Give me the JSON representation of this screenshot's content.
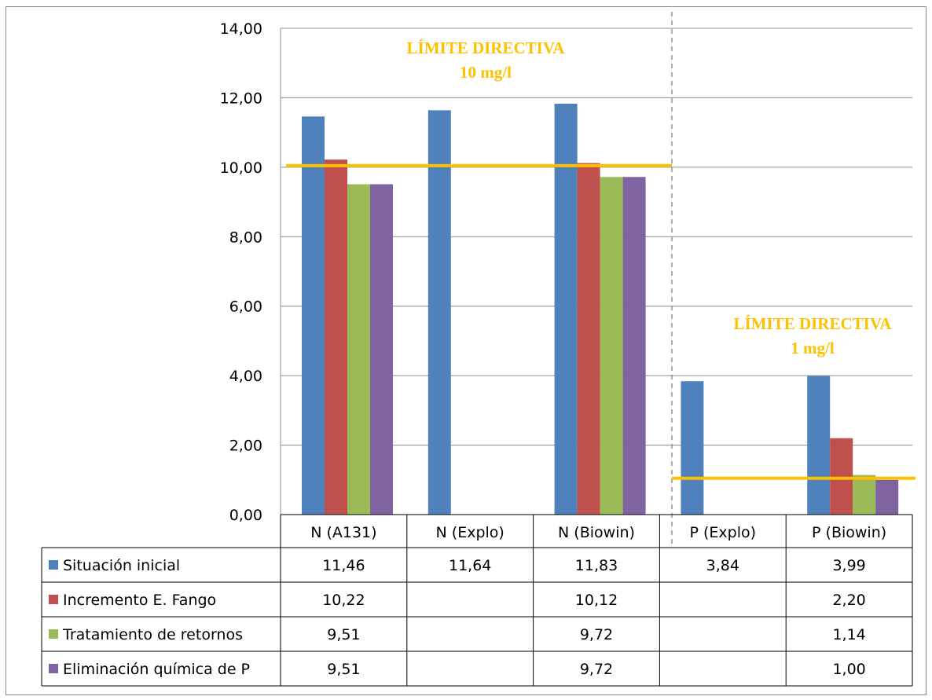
{
  "chart_data": {
    "type": "bar",
    "categories": [
      "N (A131)",
      "N (Explo)",
      "N (Biowin)",
      "P (Explo)",
      "P (Biowin)"
    ],
    "series": [
      {
        "name": "Situación inicial",
        "color": "#4F81BD",
        "values": [
          11.46,
          11.64,
          11.83,
          3.84,
          3.99
        ],
        "labels": [
          "11,46",
          "11,64",
          "11,83",
          "3,84",
          "3,99"
        ]
      },
      {
        "name": "Incremento E. Fango",
        "color": "#C0504D",
        "values": [
          10.22,
          null,
          10.12,
          null,
          2.2
        ],
        "labels": [
          "10,22",
          "",
          "10,12",
          "",
          "2,20"
        ]
      },
      {
        "name": "Tratamiento de retornos",
        "color": "#9BBB59",
        "values": [
          9.51,
          null,
          9.72,
          null,
          1.14
        ],
        "labels": [
          "9,51",
          "",
          "9,72",
          "",
          "1,14"
        ]
      },
      {
        "name": "Eliminación química de P",
        "color": "#8064A2",
        "values": [
          9.51,
          null,
          9.72,
          null,
          1.0
        ],
        "labels": [
          "9,51",
          "",
          "9,72",
          "",
          "1,00"
        ]
      }
    ],
    "ylim": [
      0,
      14
    ],
    "yticks": [
      0,
      2,
      4,
      6,
      8,
      10,
      12,
      14
    ],
    "ytick_labels": [
      "0,00",
      "2,00",
      "4,00",
      "6,00",
      "8,00",
      "10,00",
      "12,00",
      "14,00"
    ],
    "grid": true,
    "legend": "data-table",
    "limits": [
      {
        "value": 10,
        "text": [
          "LÍMITE DIRECTIVA",
          "10 mg/l"
        ],
        "color": "#FFC000",
        "group": "N"
      },
      {
        "value": 1,
        "text": [
          "LÍMITE DIRECTIVA",
          "1 mg/l"
        ],
        "color": "#FFC000",
        "group": "P"
      }
    ]
  }
}
